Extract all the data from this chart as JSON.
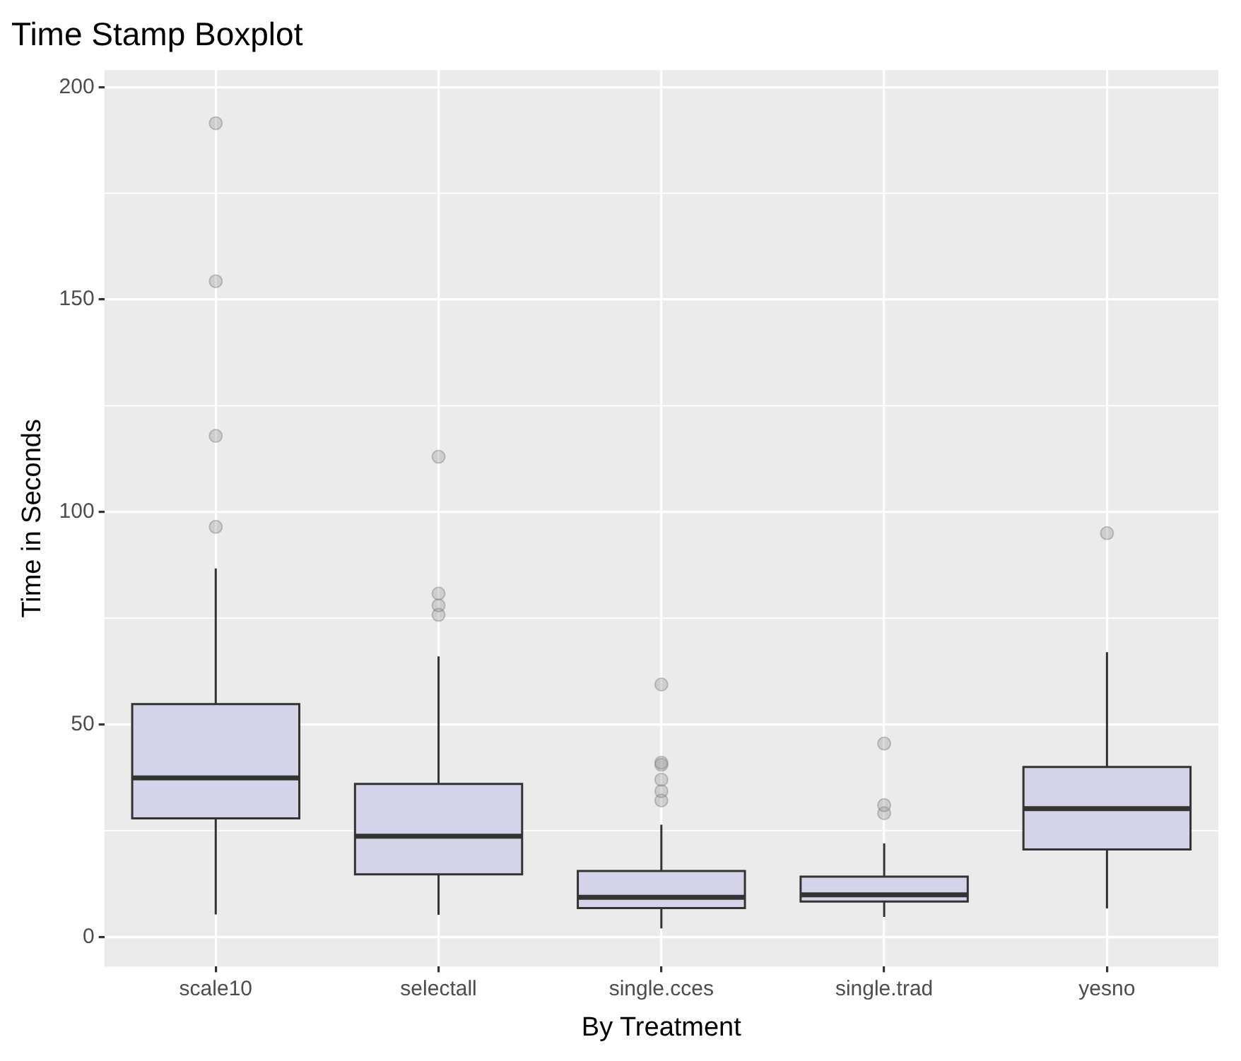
{
  "chart_data": {
    "type": "box",
    "title": "Time Stamp Boxplot",
    "xlabel": "By Treatment",
    "ylabel": "Time in Seconds",
    "categories": [
      "scale10",
      "selectall",
      "single.cces",
      "single.trad",
      "yesno"
    ],
    "series": [
      {
        "color": "#d5d3e8",
        "boxes": [
          {
            "low": 5.3,
            "q1": 27.9,
            "median": 37.4,
            "q3": 54.8,
            "high": 86.7,
            "outliers": [
              96.5,
              117.9,
              154.3,
              191.5
            ]
          },
          {
            "low": 5.2,
            "q1": 14.7,
            "median": 23.7,
            "q3": 36,
            "high": 66,
            "outliers": [
              75.8,
              78,
              80.8,
              113
            ]
          },
          {
            "low": 2,
            "q1": 6.8,
            "median": 9.3,
            "q3": 15.5,
            "high": 26.4,
            "outliers": [
              32.1,
              34.3,
              37,
              40.5,
              41,
              59.4
            ]
          },
          {
            "low": 4.7,
            "q1": 8.3,
            "median": 9.9,
            "q3": 14.2,
            "high": 22,
            "outliers": [
              29.1,
              31,
              45.5
            ]
          },
          {
            "low": 6.7,
            "q1": 20.6,
            "median": 30.2,
            "q3": 40,
            "high": 67,
            "outliers": [
              95
            ]
          }
        ]
      }
    ],
    "ylim": [
      -7,
      204
    ],
    "yticks": [
      0,
      50,
      100,
      150,
      200
    ],
    "grid": true,
    "legend": false
  }
}
